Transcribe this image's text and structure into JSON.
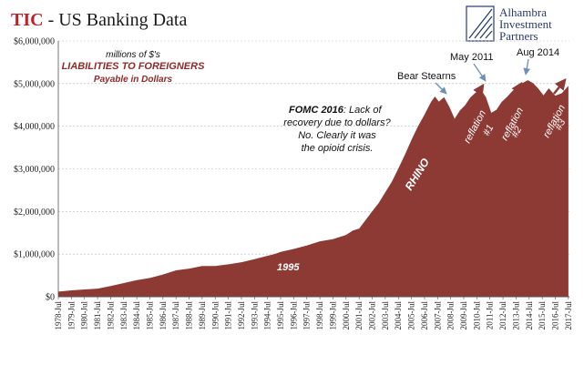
{
  "header": {
    "title_prefix": "TIC",
    "title_rest": " - US Banking Data"
  },
  "logo": {
    "lines": [
      "Alhambra",
      "Investment",
      "Partners"
    ]
  },
  "colors": {
    "area_fill": "#8e3a34",
    "title_red": "#c0202a",
    "arrow_blue": "#6d8fb8",
    "arrow_red": "#8e3a34",
    "grid": "#bbbbbb"
  },
  "chart_data": {
    "type": "area",
    "title": "TIC - US Banking Data",
    "subtitle": "LIABILITIES TO FOREIGNERS",
    "subtitle_note": "millions of $'s",
    "subtitle_detail": "Payable in Dollars",
    "xlabel": "",
    "ylabel": "",
    "ylim": [
      0,
      6000000
    ],
    "yticks": [
      0,
      1000000,
      2000000,
      3000000,
      4000000,
      5000000,
      6000000
    ],
    "ytick_labels": [
      "$0",
      "$1,000,000",
      "$2,000,000",
      "$3,000,000",
      "$4,000,000",
      "$5,000,000",
      "$6,000,000"
    ],
    "xlim": [
      1978.5,
      2017.58
    ],
    "xtick_labels": [
      "1978-Jul",
      "1979-Jul",
      "1980-Jul",
      "1981-Jul",
      "1982-Jul",
      "1983-Jul",
      "1984-Jul",
      "1985-Jul",
      "1986-Jul",
      "1987-Jul",
      "1988-Jul",
      "1989-Jul",
      "1990-Jul",
      "1991-Jul",
      "1992-Jul",
      "1993-Jul",
      "1994-Jul",
      "1995-Jul",
      "1996-Jul",
      "1997-Jul",
      "1998-Jul",
      "1999-Jul",
      "2000-Jul",
      "2001-Jul",
      "2002-Jul",
      "2003-Jul",
      "2004-Jul",
      "2005-Jul",
      "2006-Jul",
      "2007-Jul",
      "2008-Jul",
      "2009-Jul",
      "2010-Jul",
      "2011-Jul",
      "2012-Jul",
      "2013-Jul",
      "2014-Jul",
      "2015-Jul",
      "2016-Jul",
      "2017-Jul"
    ],
    "grid": true,
    "legend": "none",
    "series": [
      {
        "x": [
          1978.5,
          1979.5,
          1980.5,
          1981.5,
          1982.5,
          1983.5,
          1984.5,
          1985.5,
          1986.5,
          1987.5,
          1988.5,
          1989.5,
          1990.5,
          1991.5,
          1992.5,
          1993.5,
          1994.5,
          1995.0,
          1995.5,
          1996.5,
          1997.5,
          1998.5,
          1999.5,
          2000.5,
          2001.0,
          2001.5,
          2002.0,
          2002.5,
          2003.0,
          2003.5,
          2004.0,
          2004.5,
          2005.0,
          2005.5,
          2006.0,
          2006.5,
          2007.0,
          2007.3,
          2007.6,
          2008.0,
          2008.4,
          2008.8,
          2009.2,
          2009.6,
          2010.0,
          2010.4,
          2010.8,
          2011.2,
          2011.6,
          2012.0,
          2012.4,
          2012.8,
          2013.2,
          2013.6,
          2014.0,
          2014.4,
          2014.8,
          2015.2,
          2015.6,
          2016.0,
          2016.5,
          2017.0,
          2017.5
        ],
        "values": [
          120000,
          150000,
          170000,
          190000,
          250000,
          320000,
          390000,
          440000,
          520000,
          620000,
          660000,
          720000,
          720000,
          760000,
          810000,
          880000,
          960000,
          1000000,
          1050000,
          1120000,
          1200000,
          1300000,
          1350000,
          1450000,
          1550000,
          1600000,
          1800000,
          2000000,
          2200000,
          2450000,
          2700000,
          3000000,
          3300000,
          3650000,
          4000000,
          4300000,
          4600000,
          4700000,
          4550000,
          4650000,
          4450000,
          4200000,
          4400000,
          4500000,
          4650000,
          4750000,
          4850000,
          4700000,
          4350000,
          4400000,
          4550000,
          4650000,
          4800000,
          4950000,
          5050000,
          5100000,
          5000000,
          4850000,
          4700000,
          4900000,
          4750000,
          4800000,
          4950000
        ]
      }
    ],
    "annotations": [
      {
        "id": "bear",
        "text": "Bear Stearns"
      },
      {
        "id": "may2011",
        "text": "May 2011"
      },
      {
        "id": "aug2014",
        "text": "Aug 2014"
      },
      {
        "id": "fomc_bold",
        "text": "FOMC 2016"
      },
      {
        "id": "fomc_rest",
        "text": ": Lack of"
      },
      {
        "id": "fomc_l2",
        "text": "recovery due to dollars?"
      },
      {
        "id": "fomc_l3",
        "text": "No. Clearly it was"
      },
      {
        "id": "fomc_l4",
        "text": "the opioid crisis."
      },
      {
        "id": "rhino",
        "text": "RHINO"
      },
      {
        "id": "y1995",
        "text": "1995"
      },
      {
        "id": "refl1a",
        "text": "reflation"
      },
      {
        "id": "refl1b",
        "text": "#1"
      },
      {
        "id": "refl2a",
        "text": "reflation"
      },
      {
        "id": "refl2b",
        "text": "#2"
      },
      {
        "id": "refl3a",
        "text": "reflation"
      },
      {
        "id": "refl3b",
        "text": "#3"
      }
    ]
  }
}
